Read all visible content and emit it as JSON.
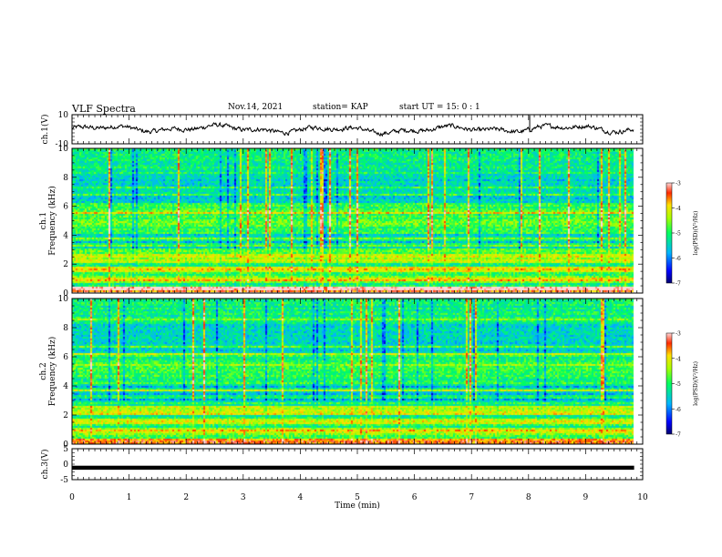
{
  "header": {
    "title": "VLF Spectra",
    "date": "Nov.14, 2021",
    "station": "station= KAP",
    "start_time": "start  UT =   15: 0  : 1"
  },
  "chart_data": [
    {
      "type": "line",
      "panel": "ch1-waveform",
      "ylabel": "ch.1(V)",
      "ylim": [
        -10,
        10
      ],
      "yticks": [
        "10",
        "-10"
      ],
      "xlim": [
        0,
        10
      ],
      "note": "noisy amplitude trace oscillating roughly between -4 and 5 V for 0–9.85 min"
    },
    {
      "type": "heatmap",
      "panel": "ch1-spectrogram",
      "ylabel_top": "ch.1",
      "ylabel": "Frequency (kHz)",
      "ylim": [
        0,
        10
      ],
      "yticks": [
        "0",
        "2",
        "4",
        "6",
        "8",
        "10"
      ],
      "xlim": [
        0,
        10
      ],
      "data_end_min": 9.85,
      "colorbar": {
        "label": "log(PSD)(V²/Hz)",
        "range": [
          -7,
          -3
        ],
        "ticks": [
          "-3",
          "-4",
          "-5",
          "-6",
          "-7"
        ]
      }
    },
    {
      "type": "heatmap",
      "panel": "ch2-spectrogram",
      "ylabel_top": "ch.2",
      "ylabel": "Frequency (kHz)",
      "ylim": [
        0,
        10
      ],
      "yticks": [
        "0",
        "2",
        "4",
        "6",
        "8",
        "10"
      ],
      "xlim": [
        0,
        10
      ],
      "data_end_min": 9.85,
      "colorbar": {
        "label": "log(PSD)(V²/Hz)",
        "range": [
          -7,
          -3
        ],
        "ticks": [
          "-3",
          "-4",
          "-5",
          "-6",
          "-7"
        ]
      }
    },
    {
      "type": "line",
      "panel": "ch3-waveform",
      "ylabel": "ch.3(V)",
      "ylim": [
        -5,
        5
      ],
      "yticks": [
        "5",
        "0",
        "-5"
      ],
      "xlim": [
        0,
        10
      ],
      "note": "flat thick band near -1 V"
    }
  ],
  "x_axis": {
    "label": "Time  (min)",
    "ticks": [
      "0",
      "1",
      "2",
      "3",
      "4",
      "5",
      "6",
      "7",
      "8",
      "9",
      "10"
    ]
  }
}
